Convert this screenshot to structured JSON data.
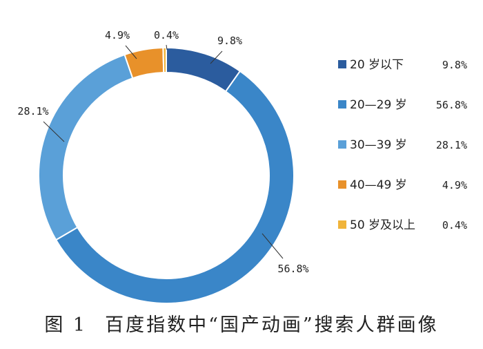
{
  "figure": {
    "number": "图 1",
    "title": "百度指数中“国产动画”搜索人群画像"
  },
  "chart_data": {
    "type": "pie",
    "style": "donut",
    "title": "",
    "legend_position": "right",
    "slices": [
      {
        "name": "20 岁以下",
        "value": 9.8,
        "label": "9.8%",
        "color": "#2b5c9e"
      },
      {
        "name": "20—29 岁",
        "value": 56.8,
        "label": "56.8%",
        "color": "#3a86c8"
      },
      {
        "name": "30—39 岁",
        "value": 28.1,
        "label": "28.1%",
        "color": "#5aa0d8"
      },
      {
        "name": "40—49 岁",
        "value": 4.9,
        "label": "4.9%",
        "color": "#e8912a"
      },
      {
        "name": "50 岁及以上",
        "value": 0.4,
        "label": "0.4%",
        "color": "#f0b43a"
      }
    ]
  }
}
